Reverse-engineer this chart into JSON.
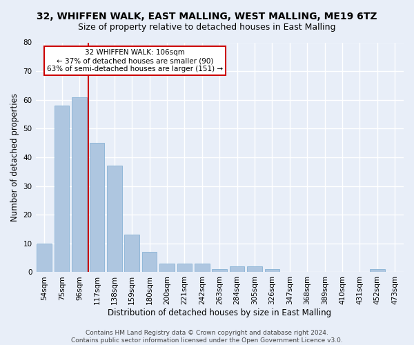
{
  "title": "32, WHIFFEN WALK, EAST MALLING, WEST MALLING, ME19 6TZ",
  "subtitle": "Size of property relative to detached houses in East Malling",
  "xlabel": "Distribution of detached houses by size in East Malling",
  "ylabel": "Number of detached properties",
  "categories": [
    "54sqm",
    "75sqm",
    "96sqm",
    "117sqm",
    "138sqm",
    "159sqm",
    "180sqm",
    "200sqm",
    "221sqm",
    "242sqm",
    "263sqm",
    "284sqm",
    "305sqm",
    "326sqm",
    "347sqm",
    "368sqm",
    "389sqm",
    "410sqm",
    "431sqm",
    "452sqm",
    "473sqm"
  ],
  "values": [
    10,
    58,
    61,
    45,
    37,
    13,
    7,
    3,
    3,
    3,
    1,
    2,
    2,
    1,
    0,
    0,
    0,
    0,
    0,
    1,
    0
  ],
  "bar_color": "#aec6e0",
  "bar_edgecolor": "#7aaad0",
  "background_color": "#e8eef8",
  "grid_color": "#ffffff",
  "vline_x": 2.5,
  "vline_color": "#cc0000",
  "annotation_label": "32 WHIFFEN WALK: 106sqm",
  "annotation_line1": "← 37% of detached houses are smaller (90)",
  "annotation_line2": "63% of semi-detached houses are larger (151) →",
  "annotation_box_color": "#ffffff",
  "annotation_box_edgecolor": "#cc0000",
  "ylim": [
    0,
    80
  ],
  "yticks": [
    0,
    10,
    20,
    30,
    40,
    50,
    60,
    70,
    80
  ],
  "footer_line1": "Contains HM Land Registry data © Crown copyright and database right 2024.",
  "footer_line2": "Contains public sector information licensed under the Open Government Licence v3.0.",
  "title_fontsize": 10,
  "subtitle_fontsize": 9,
  "axis_label_fontsize": 8.5,
  "tick_fontsize": 7.5,
  "annotation_fontsize": 7.5,
  "footer_fontsize": 6.5
}
